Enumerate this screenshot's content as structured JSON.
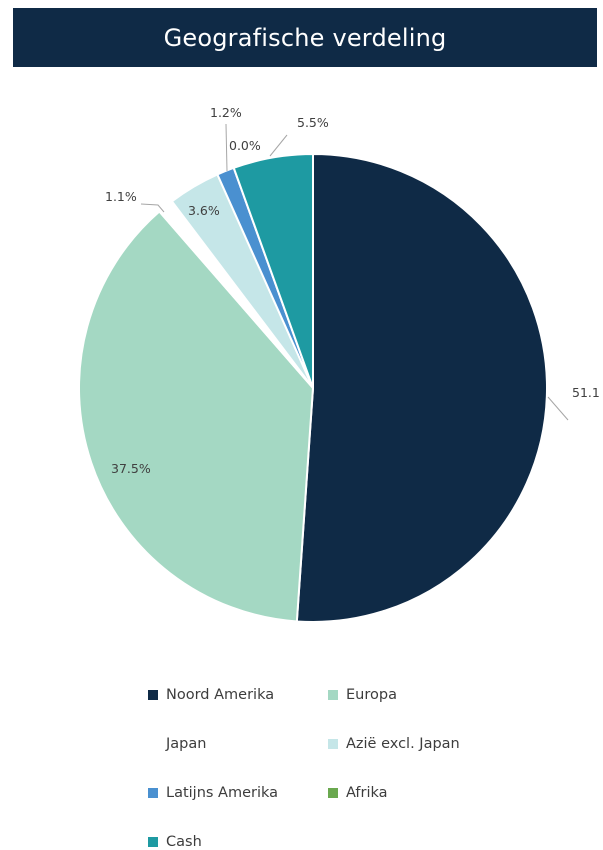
{
  "title": "Geografische verdeling",
  "chart_data": {
    "type": "pie",
    "title": "Geografische verdeling",
    "series": [
      {
        "name": "Noord Amerika",
        "value": 51.1,
        "label": "51.1",
        "color": "#0f2a46"
      },
      {
        "name": "Europa",
        "value": 37.5,
        "label": "37.5%",
        "color": "#a4d8c3"
      },
      {
        "name": "Japan",
        "value": 1.1,
        "label": "1.1%",
        "color": "#ffffff"
      },
      {
        "name": "Azië excl. Japan",
        "value": 3.6,
        "label": "3.6%",
        "color": "#c5e6e8"
      },
      {
        "name": "Latijns Amerika",
        "value": 1.2,
        "label": "1.2%",
        "color": "#4a90d0"
      },
      {
        "name": "Afrika",
        "value": 0.0,
        "label": "0.0%",
        "color": "#6aa84f"
      },
      {
        "name": "Cash",
        "value": 5.5,
        "label": "5.5%",
        "color": "#1e9aa2"
      }
    ],
    "legend_position": "bottom"
  }
}
